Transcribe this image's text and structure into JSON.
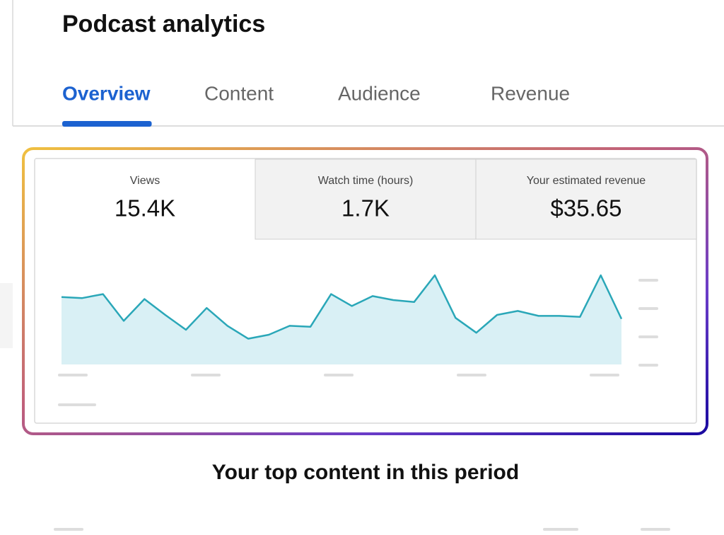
{
  "header": {
    "title": "Podcast analytics"
  },
  "tabs": [
    {
      "label": "Overview",
      "selected": true
    },
    {
      "label": "Content",
      "selected": false
    },
    {
      "label": "Audience",
      "selected": false
    },
    {
      "label": "Revenue",
      "selected": false
    }
  ],
  "metrics": [
    {
      "label": "Views",
      "value": "15.4K",
      "selected": true
    },
    {
      "label": "Watch time (hours)",
      "value": "1.7K",
      "selected": false
    },
    {
      "label": "Your estimated revenue",
      "value": "$35.65",
      "selected": false
    }
  ],
  "chart_data": {
    "type": "area",
    "color": "#2aa7b8",
    "fill": "#d9f0f5",
    "ylim": [
      0,
      100
    ],
    "values": [
      68,
      67,
      71,
      44,
      66,
      50,
      35,
      57,
      39,
      26,
      30,
      39,
      38,
      71,
      59,
      69,
      65,
      63,
      90,
      47,
      32,
      50,
      54,
      49,
      49,
      48,
      90,
      46
    ]
  },
  "section": {
    "title": "Your top content in this period"
  }
}
